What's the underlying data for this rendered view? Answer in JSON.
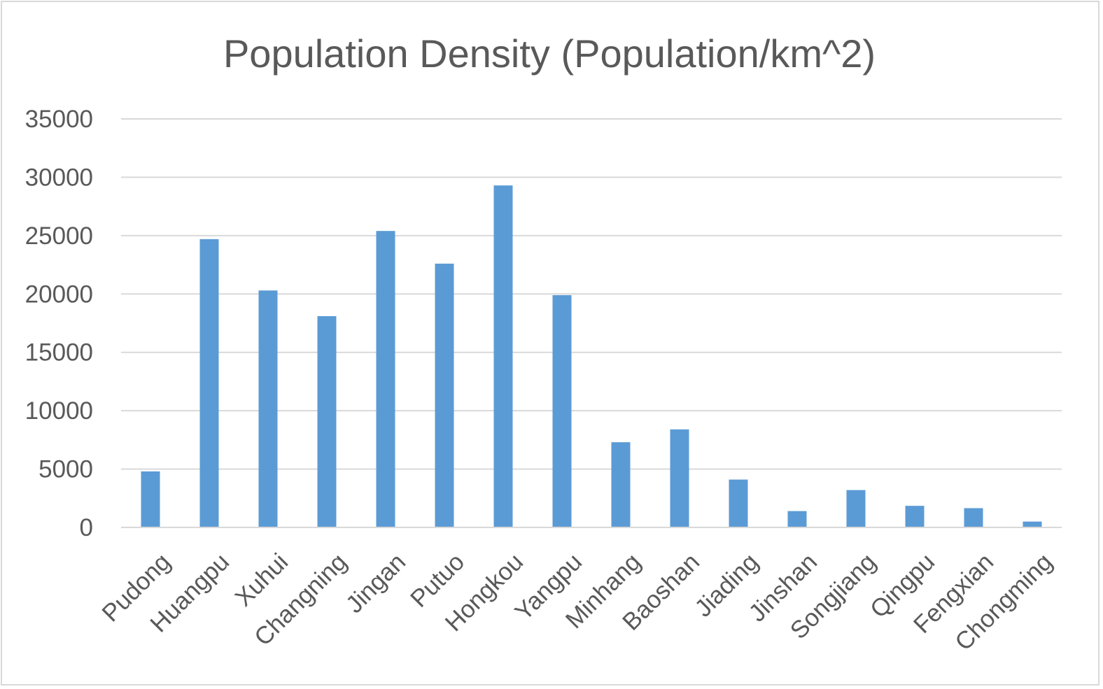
{
  "chart_data": {
    "type": "bar",
    "title": "Population Density (Population/km^2)",
    "xlabel": "",
    "ylabel": "",
    "categories": [
      "Pudong",
      "Huangpu",
      "Xuhui",
      "Changning",
      "Jingan",
      "Putuo",
      "Hongkou",
      "Yangpu",
      "Minhang",
      "Baoshan",
      "Jiading",
      "Jinshan",
      "Songjiang",
      "Qingpu",
      "Fengxian",
      "Chongming"
    ],
    "series": [
      {
        "name": "Population Density",
        "values": [
          4800,
          24700,
          20300,
          18100,
          25400,
          22600,
          29300,
          19900,
          7300,
          8400,
          4100,
          1400,
          3200,
          1850,
          1650,
          500
        ],
        "color": "#5b9bd5"
      }
    ],
    "ylim": [
      0,
      35000
    ],
    "yticks": [
      "0",
      "5000",
      "10000",
      "15000",
      "20000",
      "25000",
      "30000",
      "35000"
    ],
    "grid": true,
    "legend": "none"
  },
  "colors": {
    "bar": "#5b9bd5",
    "text": "#595959",
    "grid": "#d9d9d9"
  }
}
